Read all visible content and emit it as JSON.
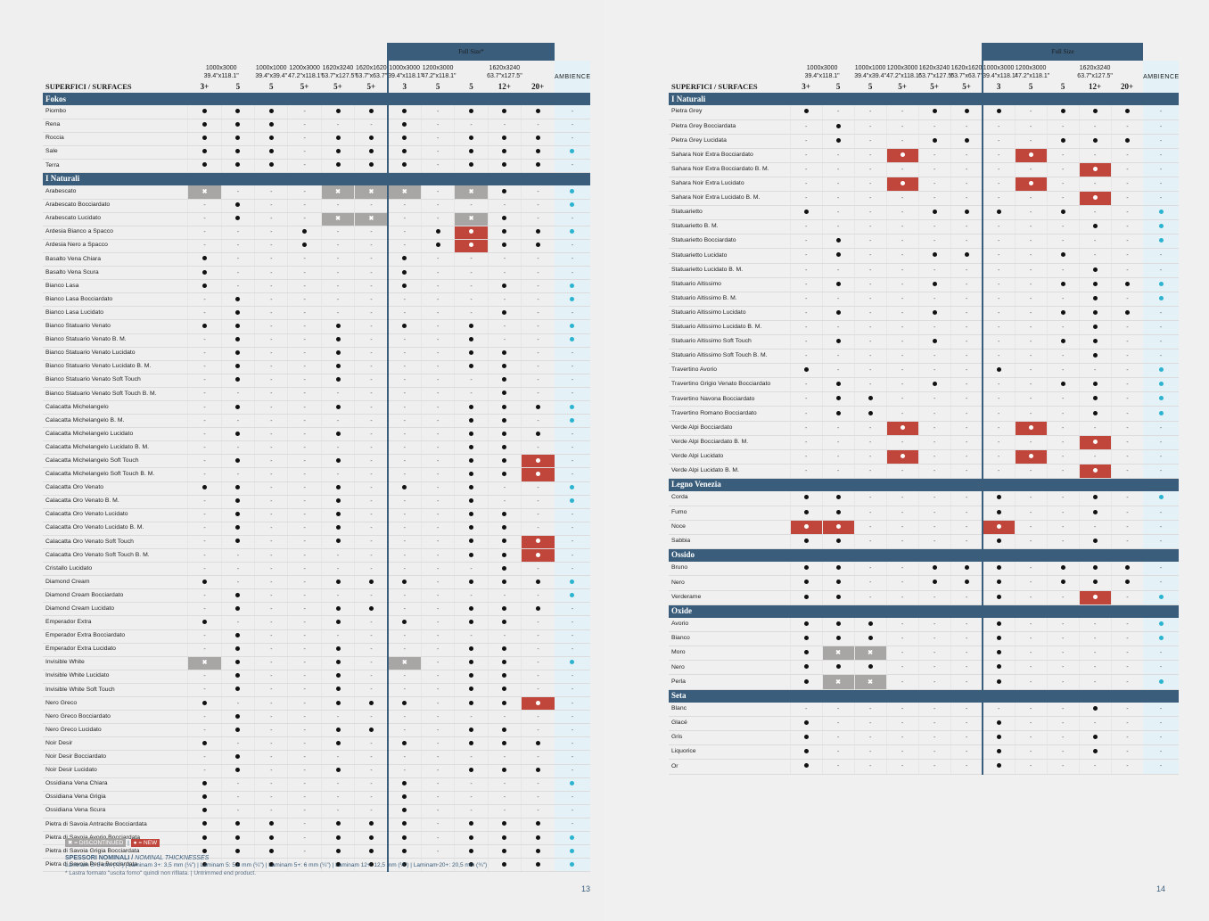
{
  "legend": {
    "discontinued": "= DISCONTINUED",
    "sep": "|",
    "new": "= NEW",
    "thickness_title": "SPESSORI NOMINALI /",
    "thickness_title_en": "NOMINAL THICKNESSES",
    "thickness_line": "Laminam 3: 3 mm (⅛\") | Laminam 3+: 3,5 mm (⅛\") | Laminam 5: 5,6 mm (¼\") | Laminam 5+: 6 mm (¼\") | Laminam 12+: 12,5 mm (½\") | Laminam 20+: 20,5 mm (¾\")",
    "note": "* Lastra formato \"uscita forno\" quindi non rifilata. | Untrimmed end product."
  },
  "pages": [
    {
      "page_number": "13",
      "fullsize_label": "Full Size*",
      "surface_header": "SUPERFICI / SURFACES",
      "ambience": "AMBIENCE",
      "columns": [
        {
          "fmt": "1000x3000",
          "inch": "39.4\"x118.1\"",
          "th": "3+",
          "span": 2
        },
        {
          "fmt": "",
          "inch": "",
          "th": "5",
          "span": 0
        },
        {
          "fmt": "1000x1000",
          "inch": "39.4\"x39.4\"",
          "th": "5",
          "span": 1
        },
        {
          "fmt": "1200x3000",
          "inch": "47.2\"x118.1\"",
          "th": "5+",
          "span": 1
        },
        {
          "fmt": "1620x3240",
          "inch": "63.7\"x127.5\"",
          "th": "5+",
          "span": 1
        },
        {
          "fmt": "1620x1620",
          "inch": "63.7\"x63.7\"",
          "th": "5+",
          "span": 1
        },
        {
          "fmt": "1000x3000",
          "inch": "39.4\"x118.1\"",
          "th": "3",
          "span": 1
        },
        {
          "fmt": "1200x3000",
          "inch": "47.2\"x118.1\"",
          "th": "5",
          "span": 1
        },
        {
          "fmt": "1620x3240",
          "inch": "63.7\"x127.5\"",
          "th": "5",
          "span": 3
        },
        {
          "fmt": "",
          "inch": "",
          "th": "12+",
          "span": 0
        },
        {
          "fmt": "",
          "inch": "",
          "th": "20+",
          "span": 0
        }
      ],
      "sections": [
        {
          "title": "Fokos",
          "rows": [
            {
              "name": "Piombo",
              "cells": "●●●-●●●-●●●",
              "amb": "-"
            },
            {
              "name": "Rena",
              "cells": "●●●---●----",
              "amb": "-"
            },
            {
              "name": "Roccia",
              "cells": "●●●-●●●-●●●",
              "amb": "-"
            },
            {
              "name": "Sale",
              "cells": "●●●-●●●-●●●",
              "amb": "●"
            },
            {
              "name": "Terra",
              "cells": "●●●-●●●-●●●",
              "amb": "-"
            }
          ]
        },
        {
          "title": "I Naturali",
          "rows": [
            {
              "name": "Arabescato",
              "cells": "x---xxx-x●-",
              "amb": "●"
            },
            {
              "name": "Arabescato Bocciardato",
              "cells": "-●---------",
              "amb": "●"
            },
            {
              "name": "Arabescato Lucidato",
              "cells": "-●--xx--x●-",
              "amb": "-"
            },
            {
              "name": "Ardesia Bianco a Spacco",
              "cells": "---●---●o●●",
              "amb": "●"
            },
            {
              "name": "Ardesia Nero a Spacco",
              "cells": "---●---●o●●",
              "amb": "-"
            },
            {
              "name": "Basalto Vena Chiara",
              "cells": "●-----●----",
              "amb": "-"
            },
            {
              "name": "Basalto Vena Scura",
              "cells": "●-----●----",
              "amb": "-"
            },
            {
              "name": "Bianco Lasa",
              "cells": "●-----●--●-",
              "amb": "●"
            },
            {
              "name": "Bianco Lasa Bocciardato",
              "cells": "-●---------",
              "amb": "●"
            },
            {
              "name": "Bianco Lasa Lucidato",
              "cells": "-●-------●-",
              "amb": "-"
            },
            {
              "name": "Bianco Statuario Venato",
              "cells": "●●--●-●-●--",
              "amb": "●"
            },
            {
              "name": "Bianco Statuario Venato B. M.",
              "cells": "-●--●---●--",
              "amb": "●"
            },
            {
              "name": "Bianco Statuario Venato Lucidato",
              "cells": "-●--●---●●-",
              "amb": "-"
            },
            {
              "name": "Bianco Statuario Venato  Lucidato B. M.",
              "cells": "-●--●---●●-",
              "amb": "-"
            },
            {
              "name": "Bianco Statuario Venato Soft Touch",
              "cells": "-●--●----●-",
              "amb": "-"
            },
            {
              "name": "Bianco Statuario Venato  Soft Touch B. M.",
              "cells": "---------●-",
              "amb": "-"
            },
            {
              "name": "Calacatta Michelangelo",
              "cells": "-●--●---●●●",
              "amb": "●"
            },
            {
              "name": "Calacatta Michelangelo B. M.",
              "cells": "--------●●-",
              "amb": "●"
            },
            {
              "name": "Calacatta Michelangelo Lucidato",
              "cells": "-●--●---●●●",
              "amb": "-"
            },
            {
              "name": "Calacatta Michelangelo Lucidato B. M.",
              "cells": "--------●●-",
              "amb": "-"
            },
            {
              "name": "Calacatta Michelangelo Soft Touch",
              "cells": "-●--●---●●o",
              "amb": "-"
            },
            {
              "name": "Calacatta Michelangelo Soft Touch B. M.",
              "cells": "--------●●o",
              "amb": "-"
            },
            {
              "name": "Calacatta Oro Venato",
              "cells": "●●--●-●-●--",
              "amb": "●"
            },
            {
              "name": "Calacatta Oro Venato B. M.",
              "cells": "-●--●---●--",
              "amb": "●"
            },
            {
              "name": "Calacatta Oro Venato Lucidato",
              "cells": "-●--●---●●-",
              "amb": "-"
            },
            {
              "name": "Calacatta Oro Venato Lucidato B. M.",
              "cells": "-●--●---●●-",
              "amb": "-"
            },
            {
              "name": "Calacatta Oro Venato Soft Touch",
              "cells": "-●--●---●●o",
              "amb": "-"
            },
            {
              "name": "Calacatta Oro Venato Soft Touch B. M.",
              "cells": "--------●●o",
              "amb": "-"
            },
            {
              "name": "Cristallo Lucidato",
              "cells": "---------●-",
              "amb": "-"
            },
            {
              "name": "Diamond Cream",
              "cells": "●---●●●-●●●",
              "amb": "●"
            },
            {
              "name": "Diamond Cream Bocciardato",
              "cells": "-●---------",
              "amb": "●"
            },
            {
              "name": "Diamond Cream Lucidato",
              "cells": "-●--●●--●●●",
              "amb": "-"
            },
            {
              "name": "Emperador Extra",
              "cells": "●---●-●-●●-",
              "amb": "-"
            },
            {
              "name": "Emperador Extra Bocciardato",
              "cells": "-●---------",
              "amb": "-"
            },
            {
              "name": "Emperador Extra Lucidato",
              "cells": "-●--●---●●-",
              "amb": "-"
            },
            {
              "name": "Invisible White",
              "cells": "x●--●-x-●●-",
              "amb": "●"
            },
            {
              "name": "Invisible White Lucidato",
              "cells": "-●--●---●●-",
              "amb": "-"
            },
            {
              "name": "Invisible White Soft Touch",
              "cells": "-●--●---●●-",
              "amb": "-"
            },
            {
              "name": "Nero Greco",
              "cells": "●---●●●-●●o",
              "amb": "-"
            },
            {
              "name": "Nero Greco Bocciardato",
              "cells": "-●---------",
              "amb": "-"
            },
            {
              "name": "Nero Greco Lucidato",
              "cells": "-●--●●--●●-",
              "amb": "-"
            },
            {
              "name": "Noir Desir",
              "cells": "●---●-●-●●●",
              "amb": "-"
            },
            {
              "name": "Noir Desir Bocciardato",
              "cells": "-●---------",
              "amb": "-"
            },
            {
              "name": "Noir Desir Lucidato",
              "cells": "-●--●---●●●",
              "amb": "-"
            },
            {
              "name": "Ossidiana Vena Chiara",
              "cells": "●-----●----",
              "amb": "●"
            },
            {
              "name": "Ossidiana Vena Grigia",
              "cells": "●-----●----",
              "amb": "-"
            },
            {
              "name": "Ossidiana Vena Scura",
              "cells": "●-----●----",
              "amb": "-"
            },
            {
              "name": "Pietra di Savoia Antracite Bocciardata",
              "cells": "●●●-●●●-●●●",
              "amb": "-"
            },
            {
              "name": "Pietra di Savoia Avorio Bocciardata",
              "cells": "●●●-●●●-●●●",
              "amb": "●"
            },
            {
              "name": "Pietra di Savoia Grigia Bocciardata",
              "cells": "●●●-●●●-●●●",
              "amb": "●"
            },
            {
              "name": "Pietra di Savoia Perla Bocciardata",
              "cells": "●●●-●●●-●●●",
              "amb": "●"
            }
          ]
        }
      ]
    },
    {
      "page_number": "14",
      "fullsize_label": "Full Size",
      "surface_header": "SUPERFICI / SURFACES",
      "ambience": "AMBIENCE",
      "columns": [
        {
          "fmt": "1000x3000",
          "inch": "39.4\"x118.1\"",
          "th": "3+",
          "span": 2
        },
        {
          "fmt": "",
          "inch": "",
          "th": "5",
          "span": 0
        },
        {
          "fmt": "1000x1000",
          "inch": "39.4\"x39.4\"",
          "th": "5",
          "span": 1
        },
        {
          "fmt": "1200x3000",
          "inch": "47.2\"x118.1\"",
          "th": "5+",
          "span": 1
        },
        {
          "fmt": "1620x3240",
          "inch": "63.7\"x127.5\"",
          "th": "5+",
          "span": 1
        },
        {
          "fmt": "1620x1620",
          "inch": "63.7\"x63.7\"",
          "th": "5+",
          "span": 1
        },
        {
          "fmt": "1000x3000",
          "inch": "39.4\"x118.1\"",
          "th": "3",
          "span": 1
        },
        {
          "fmt": "1200x3000",
          "inch": "47.2\"x118.1\"",
          "th": "5",
          "span": 1
        },
        {
          "fmt": "1620x3240",
          "inch": "63.7\"x127.5\"",
          "th": "5",
          "span": 3
        },
        {
          "fmt": "",
          "inch": "",
          "th": "12+",
          "span": 0
        },
        {
          "fmt": "",
          "inch": "",
          "th": "20+",
          "span": 0
        }
      ],
      "sections": [
        {
          "title": "I Naturali",
          "rows": [
            {
              "name": "Pietra Grey",
              "cells": "●---●●●-●●●",
              "amb": "-"
            },
            {
              "name": "Pietra Grey Bocciardata",
              "cells": "-●---------",
              "amb": "-"
            },
            {
              "name": "Pietra Grey Lucidata",
              "cells": "-●--●●--●●●",
              "amb": "-"
            },
            {
              "name": "Sahara Noir Extra Bocciardato",
              "cells": "---o---o---",
              "amb": "-"
            },
            {
              "name": "Sahara Noir Extra Bocciardato B. M.",
              "cells": "---------o-",
              "amb": "-"
            },
            {
              "name": "Sahara Noir Extra Lucidato",
              "cells": "---o---o---",
              "amb": "-"
            },
            {
              "name": "Sahara Noir Extra Lucidato B. M.",
              "cells": "---------o-",
              "amb": "-"
            },
            {
              "name": "Statuarietto",
              "cells": "●---●●●-●--",
              "amb": "●"
            },
            {
              "name": "Statuarietto B. M.",
              "cells": "---------●-",
              "amb": "●"
            },
            {
              "name": "Statuarietto Bocciardato",
              "cells": "-●---------",
              "amb": "●"
            },
            {
              "name": "Statuarietto Lucidato",
              "cells": "-●--●●--●--",
              "amb": "-"
            },
            {
              "name": "Statuarietto Lucidato B. M.",
              "cells": "---------●-",
              "amb": "-"
            },
            {
              "name": "Statuario Altissimo",
              "cells": "-●--●---●●●",
              "amb": "●"
            },
            {
              "name": "Statuario Altissimo B. M.",
              "cells": "---------●-",
              "amb": "●"
            },
            {
              "name": "Statuario Altissimo Lucidato",
              "cells": "-●--●---●●●",
              "amb": "-"
            },
            {
              "name": "Statuario Altissimo Lucidato B. M.",
              "cells": "---------●-",
              "amb": "-"
            },
            {
              "name": "Statuario Altissimo Soft Touch",
              "cells": "-●--●---●●-",
              "amb": "-"
            },
            {
              "name": "Statuario Altissimo Soft Touch B. M.",
              "cells": "---------●-",
              "amb": "-"
            },
            {
              "name": "Travertino Avorio",
              "cells": "●-----●----",
              "amb": "●"
            },
            {
              "name": "Travertino Grigio Venato Bocciardato",
              "cells": "-●--●---●●-",
              "amb": "●"
            },
            {
              "name": "Travertino Navona Bocciardato",
              "cells": "-●●------●-",
              "amb": "●"
            },
            {
              "name": "Travertino Romano Bocciardato",
              "cells": "-●●------●-",
              "amb": "●"
            },
            {
              "name": "Verde Alpi Bocciardato",
              "cells": "---o---o---",
              "amb": "-"
            },
            {
              "name": "Verde Alpi Bocciardato B. M.",
              "cells": "---------o-",
              "amb": "-"
            },
            {
              "name": "Verde Alpi Lucidato",
              "cells": "---o---o---",
              "amb": "-"
            },
            {
              "name": "Verde Alpi Lucidato B. M.",
              "cells": "---------o-",
              "amb": "-"
            }
          ]
        },
        {
          "title": "Legno Venezia",
          "rows": [
            {
              "name": "Corda",
              "cells": "●●----●--●-",
              "amb": "●"
            },
            {
              "name": "Fumo",
              "cells": "●●----●--●-",
              "amb": "-"
            },
            {
              "name": "Noce",
              "cells": "oo----o----",
              "amb": "-"
            },
            {
              "name": "Sabbia",
              "cells": "●●----●--●-",
              "amb": "-"
            }
          ]
        },
        {
          "title": "Ossido",
          "rows": [
            {
              "name": "Bruno",
              "cells": "●●--●●●-●●●",
              "amb": "-"
            },
            {
              "name": "Nero",
              "cells": "●●--●●●-●●●",
              "amb": "-"
            },
            {
              "name": "Verderame",
              "cells": "●●----●--o-",
              "amb": "●"
            }
          ]
        },
        {
          "title": "Oxide",
          "rows": [
            {
              "name": "Avorio",
              "cells": "●●●---●----",
              "amb": "●"
            },
            {
              "name": "Bianco",
              "cells": "●●●---●----",
              "amb": "●"
            },
            {
              "name": "Moro",
              "cells": "●xx---●----",
              "amb": "-"
            },
            {
              "name": "Nero",
              "cells": "●●●---●----",
              "amb": "-"
            },
            {
              "name": "Perla",
              "cells": "●xx---●----",
              "amb": "●"
            }
          ]
        },
        {
          "title": "Seta",
          "rows": [
            {
              "name": "Blanc",
              "cells": "---------●-",
              "amb": "-"
            },
            {
              "name": "Glacé",
              "cells": "●-----●----",
              "amb": "-"
            },
            {
              "name": "Gris",
              "cells": "●-----●--●-",
              "amb": "-"
            },
            {
              "name": "Liquorice",
              "cells": "●-----●--●-",
              "amb": "-"
            },
            {
              "name": "Or",
              "cells": "●-----●----",
              "amb": "-"
            }
          ]
        }
      ]
    }
  ]
}
